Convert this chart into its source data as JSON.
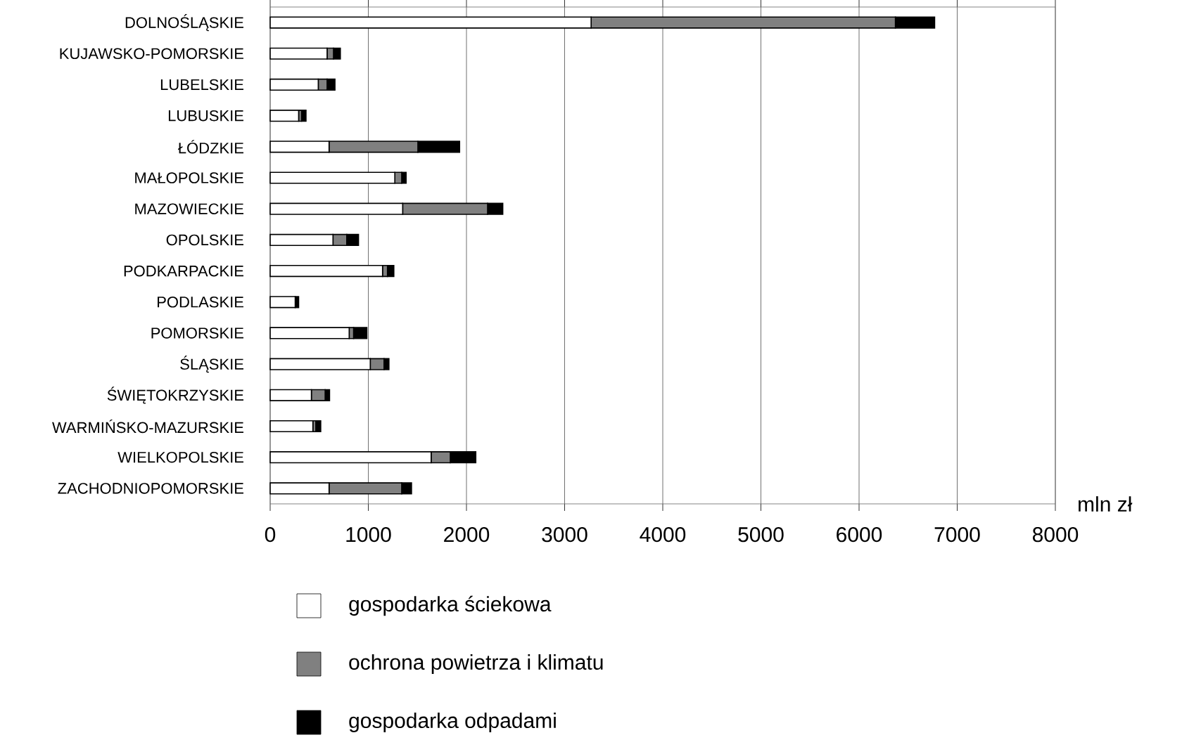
{
  "chart_data": {
    "type": "bar",
    "orientation": "horizontal",
    "stacked": true,
    "xlabel": "mln zł",
    "categories": [
      "DOLNOŚLĄSKIE",
      "KUJAWSKO-POMORSKIE",
      "LUBELSKIE",
      "LUBUSKIE",
      "ŁÓDZKIE",
      "MAŁOPOLSKIE",
      "MAZOWIECKIE",
      "OPOLSKIE",
      "PODKARPACKIE",
      "PODLASKIE",
      "POMORSKIE",
      "ŚLĄSKIE",
      "ŚWIĘTOKRZYSKIE",
      "WARMIŃSKO-MAZURSKIE",
      "WIELKOPOLSKIE",
      "ZACHODNIOPOMORSKIE"
    ],
    "series": [
      {
        "name": "gospodarka ściekowa",
        "color": "#ffffff",
        "values": [
          3270,
          580,
          490,
          290,
          600,
          1270,
          1350,
          640,
          1145,
          255,
          805,
          1020,
          420,
          435,
          1640,
          600
        ]
      },
      {
        "name": "ochrona powietrza i klimatu",
        "color": "#808080",
        "values": [
          3100,
          65,
          90,
          30,
          905,
          70,
          865,
          140,
          50,
          null,
          45,
          140,
          140,
          30,
          195,
          740
        ]
      },
      {
        "name": "gospodarka odpadami",
        "color": "#000000",
        "values": [
          400,
          70,
          80,
          45,
          425,
          45,
          155,
          120,
          65,
          35,
          135,
          50,
          45,
          50,
          260,
          100
        ]
      }
    ],
    "xlim": [
      0,
      8000
    ],
    "xticks": [
      0,
      1000,
      2000,
      3000,
      4000,
      5000,
      6000,
      7000,
      8000
    ],
    "grid": "x",
    "legend": "bottom"
  }
}
